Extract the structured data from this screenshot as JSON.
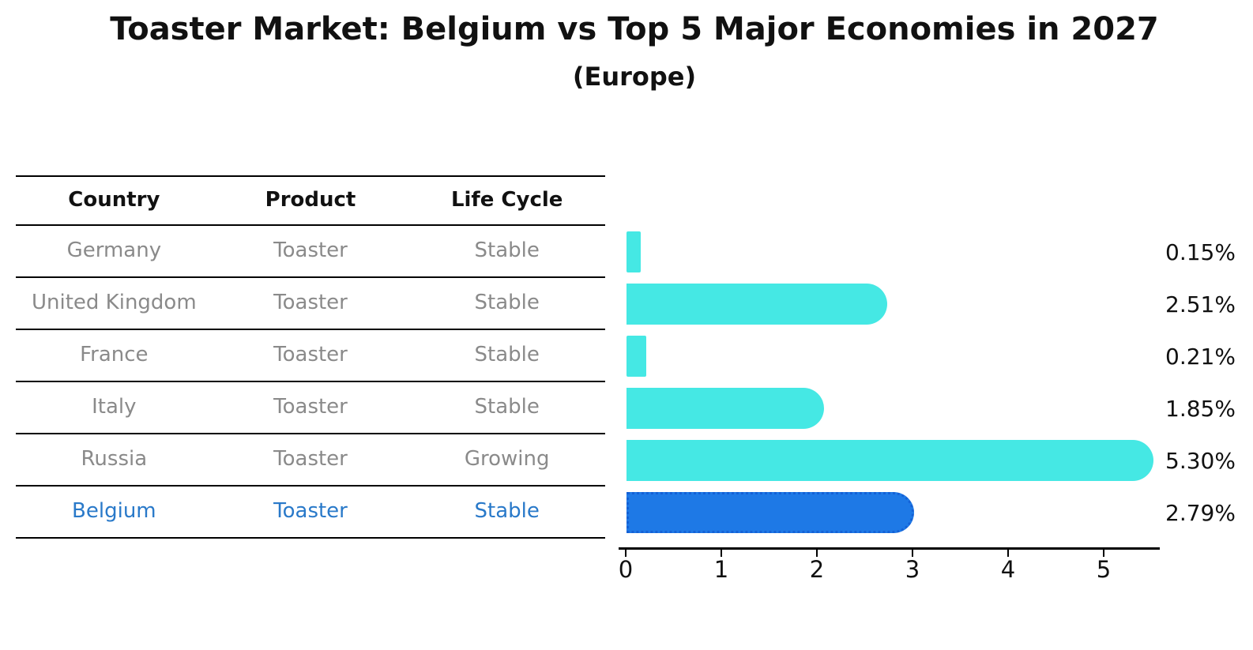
{
  "title": "Toaster Market: Belgium vs Top 5 Major Economies in 2027",
  "subtitle": "(Europe)",
  "table": {
    "headers": [
      "Country",
      "Product",
      "Life Cycle"
    ],
    "rows": [
      {
        "country": "Germany",
        "product": "Toaster",
        "life_cycle": "Stable",
        "highlighted": false
      },
      {
        "country": "United Kingdom",
        "product": "Toaster",
        "life_cycle": "Stable",
        "highlighted": false
      },
      {
        "country": "France",
        "product": "Toaster",
        "life_cycle": "Stable",
        "highlighted": false
      },
      {
        "country": "Italy",
        "product": "Toaster",
        "life_cycle": "Stable",
        "highlighted": false
      },
      {
        "country": "Russia",
        "product": "Toaster",
        "life_cycle": "Growing",
        "highlighted": false
      },
      {
        "country": "Belgium",
        "product": "Toaster",
        "life_cycle": "Stable",
        "highlighted": true
      }
    ]
  },
  "chart_data": {
    "type": "bar",
    "orientation": "horizontal",
    "title": "Toaster Market: Belgium vs Top 5 Major Economies in 2027",
    "subtitle": "(Europe)",
    "categories": [
      "Germany",
      "United Kingdom",
      "France",
      "Italy",
      "Russia",
      "Belgium"
    ],
    "values": [
      0.15,
      2.51,
      0.21,
      1.85,
      5.3,
      2.79
    ],
    "value_labels": [
      "0.15%",
      "2.51%",
      "0.21%",
      "1.85%",
      "5.30%",
      "2.79%"
    ],
    "x_ticks": [
      "0",
      "1",
      "2",
      "3",
      "4",
      "5"
    ],
    "xlim": [
      0,
      5.6
    ],
    "grid": false,
    "legend": false,
    "highlight_category": "Belgium"
  },
  "colors": {
    "bar_default": "#45E8E4",
    "bar_highlight": "#1E79E6",
    "bar_highlight_border": "#1461D6",
    "highlight_text": "#2979C9",
    "table_text": "#8A8A8A",
    "heading_text": "#111111"
  }
}
